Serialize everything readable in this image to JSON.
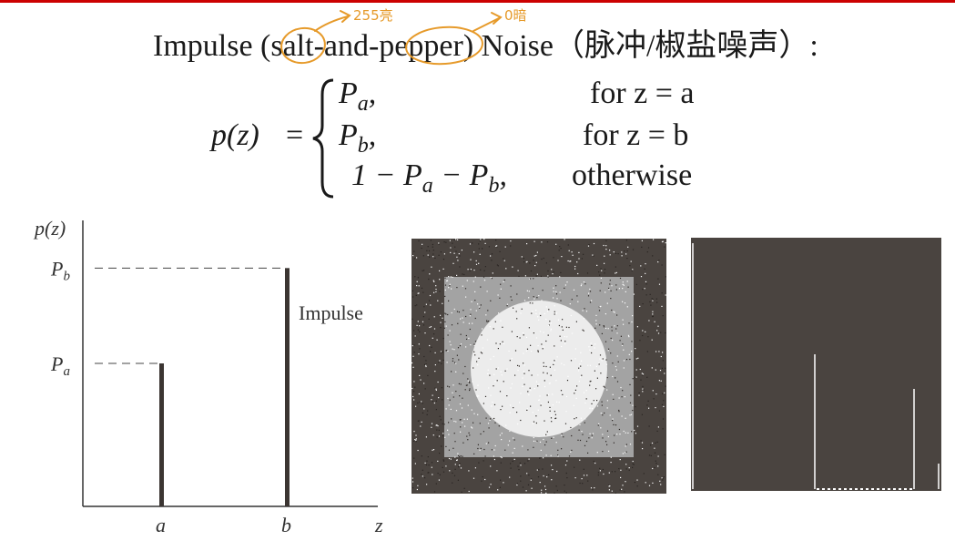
{
  "title": {
    "english": "Impulse (salt-and-pepper) Noise",
    "chinese": "（脉冲/椒盐噪声）:"
  },
  "annotations": {
    "salt_note": "255亮",
    "pepper_note": "0暗",
    "ink_color": "#e69a2a"
  },
  "formula": {
    "lhs": "p(z)",
    "equals": "=",
    "cases": [
      {
        "value": "Pa,",
        "condition": "for z = a"
      },
      {
        "value": "Pb,",
        "condition": "for z = b"
      },
      {
        "value": "1 − Pa − Pb,",
        "condition": "otherwise"
      }
    ]
  },
  "chart_data": {
    "type": "bar",
    "ylabel": "p(z)",
    "xlabel": "z",
    "categories": [
      "a",
      "b"
    ],
    "values": [
      0.6,
      1.0
    ],
    "y_tick_labels": [
      "Pa",
      "Pb"
    ],
    "annotation": "Impulse",
    "grid": false,
    "ylim": [
      0,
      1.2
    ]
  },
  "images": {
    "noisy_image": "noise-image-icon",
    "histogram": "histogram-icon",
    "dark_color": "#4a4440",
    "mid_color": "#a3a3a3",
    "light_color": "#ececec"
  }
}
